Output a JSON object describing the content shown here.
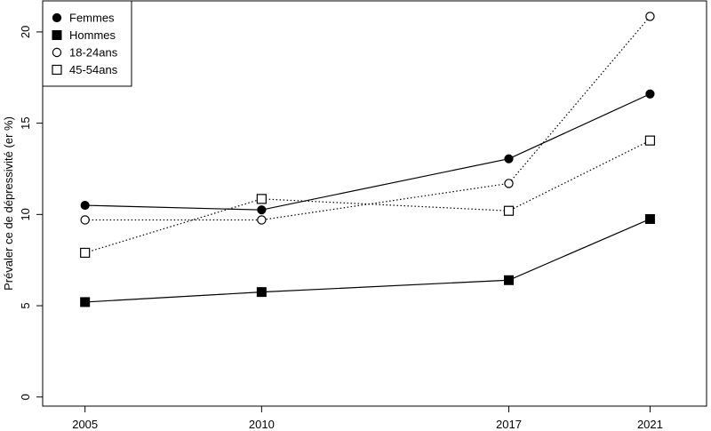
{
  "chart_data": {
    "type": "line",
    "title": "",
    "xlabel": "",
    "ylabel": "Prévaler ce de dépressivité (er %)",
    "x": [
      2005,
      2010,
      2017,
      2021
    ],
    "x_tick_labels": [
      "2005",
      "2010",
      "2017",
      "2021"
    ],
    "xlim": [
      2003.8,
      2022.6
    ],
    "ylim": [
      -0.5,
      21.7
    ],
    "y_ticks": [
      0,
      5,
      10,
      15,
      20
    ],
    "y_tick_labels": [
      "0",
      "5",
      "10",
      "15",
      "20"
    ],
    "grid": false,
    "legend_position": "top-left",
    "series": [
      {
        "name": "Femmes",
        "values": [
          10.5,
          10.25,
          13.05,
          16.6
        ],
        "line": "solid",
        "marker": "filled-circle"
      },
      {
        "name": "Hommes",
        "values": [
          5.2,
          5.75,
          6.4,
          9.75
        ],
        "line": "solid",
        "marker": "filled-square"
      },
      {
        "name": "18-24ans",
        "values": [
          9.7,
          9.7,
          11.7,
          20.85
        ],
        "line": "dotted",
        "marker": "open-circle"
      },
      {
        "name": "45-54ans",
        "values": [
          7.9,
          10.85,
          10.2,
          14.05
        ],
        "line": "dotted",
        "marker": "open-square"
      }
    ]
  }
}
